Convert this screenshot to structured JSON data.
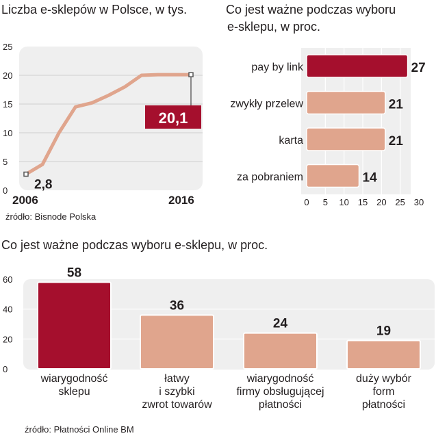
{
  "chart_data": [
    {
      "type": "line",
      "title": "Liczba e-sklepów w Polsce, w tys.",
      "x_labels": [
        "2006",
        "2016"
      ],
      "x": [
        2006,
        2007,
        2008,
        2009,
        2010,
        2011,
        2012,
        2013,
        2014,
        2015,
        2016
      ],
      "y": [
        2.8,
        4.5,
        10.0,
        14.5,
        15.2,
        16.5,
        18.0,
        20.0,
        20.1,
        20.1,
        20.1
      ],
      "ylim": [
        0,
        25
      ],
      "yticks": [
        "0",
        "5",
        "10",
        "15",
        "20",
        "25"
      ],
      "start_label": "2,8",
      "end_label": "20,1",
      "source": "źródło: Bisnode Polska",
      "colors": {
        "line": "#e0a58d",
        "highlight": "#a50f2d",
        "panel": "#efefef",
        "grid": "#cfcfcf"
      }
    },
    {
      "type": "bar",
      "orientation": "horizontal",
      "title_lines": [
        "Co jest ważne podczas wyboru",
        "e-sklepu, w proc."
      ],
      "categories": [
        "pay by link",
        "zwykły przelew",
        "karta",
        "za pobraniem"
      ],
      "values": [
        27,
        21,
        21,
        14
      ],
      "value_labels": [
        "27",
        "21",
        "21",
        "14"
      ],
      "xlim": [
        0,
        30
      ],
      "xticks": [
        "0",
        "5",
        "10",
        "15",
        "20",
        "25",
        "30"
      ],
      "colors": {
        "highlight": "#a50f2d",
        "bar": "#e0a58d",
        "panel": "#efefef"
      }
    },
    {
      "type": "bar",
      "orientation": "vertical",
      "title": "Co jest ważne podczas wyboru e-sklepu, w proc.",
      "categories": [
        [
          "wiarygodność",
          "sklepu"
        ],
        [
          "łatwy",
          "i szybki",
          "zwrot towarów"
        ],
        [
          "wiarygodność",
          "firmy obsługującej",
          "płatności"
        ],
        [
          "duży wybór",
          "form",
          "płatności"
        ]
      ],
      "values": [
        58,
        36,
        24,
        19
      ],
      "value_labels": [
        "58",
        "36",
        "24",
        "19"
      ],
      "ylim": [
        0,
        60
      ],
      "yticks": [
        "0",
        "20",
        "40",
        "60"
      ],
      "source": "źródło: Płatności Online BM",
      "colors": {
        "highlight": "#a50f2d",
        "bar": "#e0a58d",
        "panel": "#efefef"
      }
    }
  ]
}
